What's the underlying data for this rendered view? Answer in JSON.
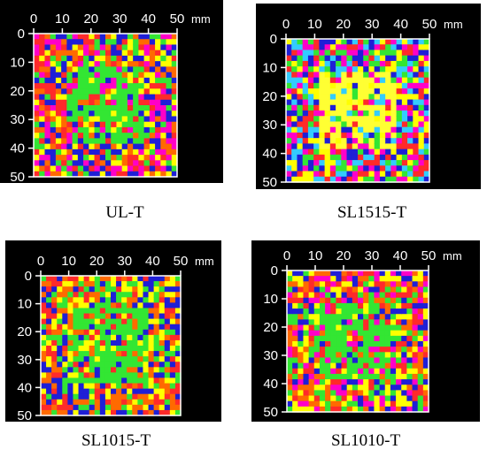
{
  "x_ticks": [
    "0",
    "10",
    "20",
    "30",
    "40",
    "50"
  ],
  "y_ticks": [
    "0",
    "10",
    "20",
    "30",
    "40",
    "50"
  ],
  "unit": "mm",
  "panels": [
    {
      "id": "ul",
      "label": "UL-T",
      "map_colors": [
        "#ff2a2a",
        "#ff00c8",
        "#ffff00",
        "#33e633",
        "#ff6a00",
        "#1f1fd6"
      ],
      "center_color": "#33e633"
    },
    {
      "id": "sl1515",
      "label": "SL1515-T",
      "map_colors": [
        "#ff2a2a",
        "#ffff00",
        "#33e633",
        "#33ccff",
        "#ff00c8",
        "#1f1fd6"
      ],
      "center_color": "#ffff33"
    },
    {
      "id": "sl1015",
      "label": "SL1015-T",
      "map_colors": [
        "#ff2a2a",
        "#33e633",
        "#ffff00",
        "#1f1fd6",
        "#ff6a00"
      ],
      "center_color": "#33e633"
    },
    {
      "id": "sl1010",
      "label": "SL1010-T",
      "map_colors": [
        "#ff2a2a",
        "#ff6a00",
        "#ffff00",
        "#1f1fd6",
        "#33e633",
        "#ff00c8"
      ],
      "center_color": "#33e633"
    }
  ]
}
